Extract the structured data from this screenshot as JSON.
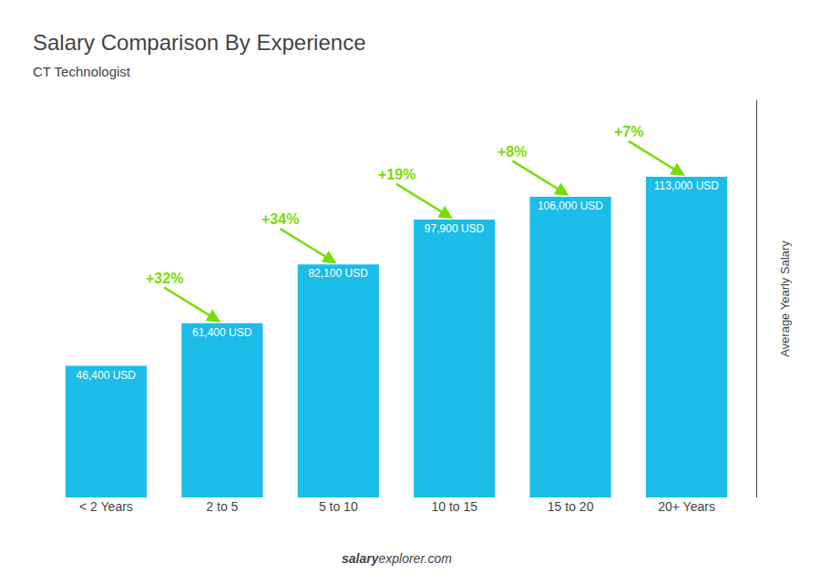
{
  "chart_data": {
    "type": "bar",
    "title": "Salary Comparison By Experience",
    "subtitle": "CT Technologist",
    "ylabel": "Average Yearly Salary",
    "categories": [
      "< 2 Years",
      "2 to 5",
      "5 to 10",
      "10 to 15",
      "15 to 20",
      "20+ Years"
    ],
    "values": [
      46400,
      61400,
      82100,
      97900,
      106000,
      113000
    ],
    "value_labels": [
      "46,400 USD",
      "61,400 USD",
      "82,100 USD",
      "97,900 USD",
      "106,000 USD",
      "113,000 USD"
    ],
    "data_labels": true,
    "color": "#1BBDE8",
    "ylim": [
      0,
      140000
    ],
    "grid": false,
    "tick_labels": "x",
    "annotations": [
      {
        "text": "+32%",
        "x": "2 to 5",
        "color": "#77DD00"
      },
      {
        "text": "+34%",
        "x": "5 to 10",
        "color": "#77DD00"
      },
      {
        "text": "+19%",
        "x": "10 to 15",
        "color": "#77DD00"
      },
      {
        "text": "+8%",
        "x": "15 to 20",
        "color": "#77DD00"
      },
      {
        "text": "+7%",
        "x": "20+ Years",
        "color": "#77DD00"
      }
    ],
    "footer": [
      "salary",
      "explorer.com"
    ]
  }
}
